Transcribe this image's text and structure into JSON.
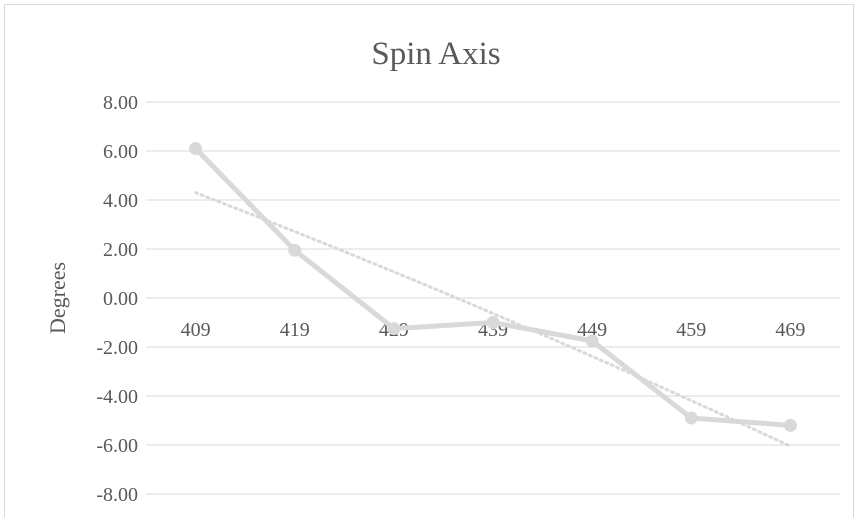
{
  "chart_data": {
    "type": "line",
    "title": "Spin Axis",
    "xlabel": "",
    "ylabel": "Degrees",
    "categories": [
      "409",
      "419",
      "429",
      "439",
      "449",
      "459",
      "469"
    ],
    "series": [
      {
        "values": [
          6.1,
          1.95,
          -1.25,
          -1.0,
          -1.75,
          -4.9,
          -5.2
        ]
      }
    ],
    "trendline": {
      "type": "polynomial",
      "start": 4.3,
      "end": -6.05
    },
    "ylim": [
      -8,
      8
    ],
    "yticks": [
      "8.00",
      "6.00",
      "4.00",
      "2.00",
      "0.00",
      "-2.00",
      "-4.00",
      "-6.00",
      "-8.00"
    ],
    "grid": true,
    "legend": "none",
    "colors": {
      "series": "#d9d9d9",
      "trendline": "#d9d9d9",
      "gridline": "#d9d9d9",
      "text": "#595959"
    }
  }
}
